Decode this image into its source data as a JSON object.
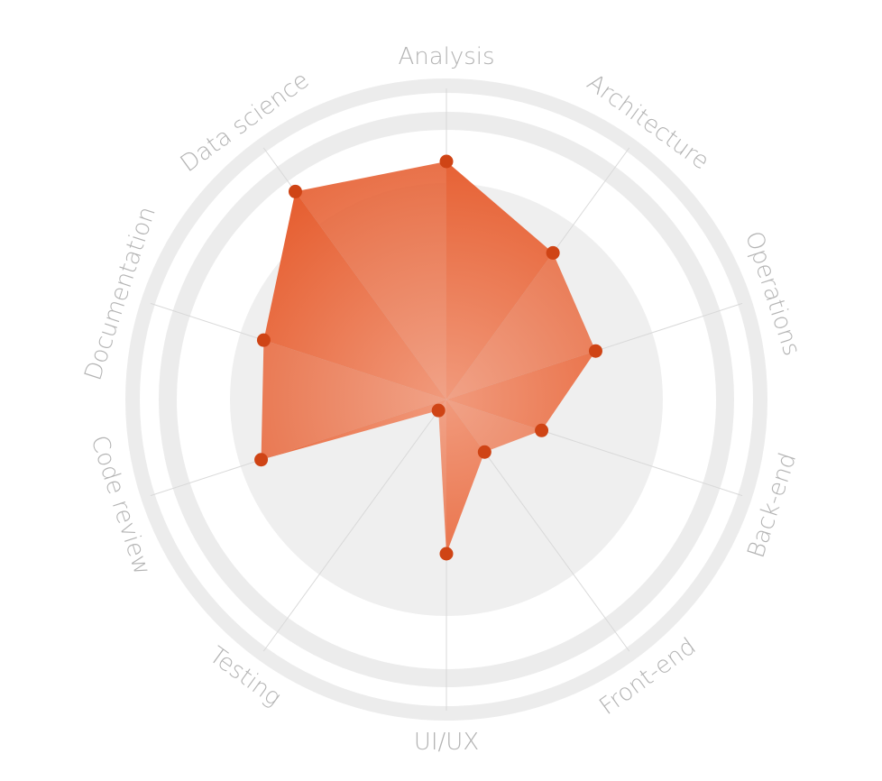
{
  "chart_data": {
    "type": "radar",
    "title": "",
    "axes": [
      "Analysis",
      "Architecture",
      "Operations",
      "Back-end",
      "Front-end",
      "UI/UX",
      "Testing",
      "Code review",
      "Documentation",
      "Data science"
    ],
    "series": [
      {
        "values": [
          88,
          67,
          58,
          37,
          24,
          57,
          5,
          72,
          71,
          95
        ]
      }
    ],
    "range": [
      0,
      100
    ],
    "grid": true,
    "colors": {
      "fill_light": "#ef8d6c",
      "fill_dark": "#e55a2b",
      "point": "#cf4415",
      "ring": "#ececec",
      "inner_disc": "#efefef",
      "spoke": "#d9d9d9",
      "label": "#b3b3b3"
    }
  }
}
